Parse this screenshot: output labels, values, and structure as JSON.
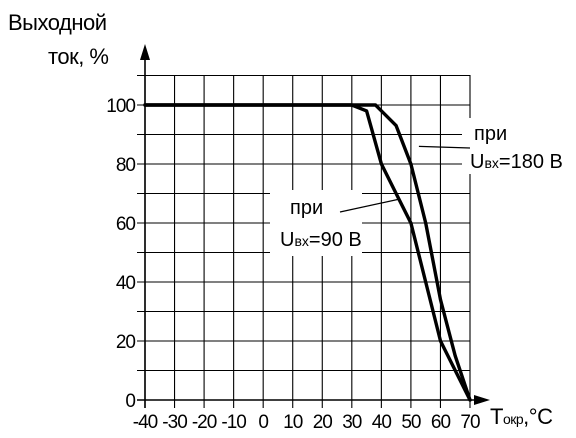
{
  "chart_data": {
    "type": "line",
    "ylabel_line1": "Выходной",
    "ylabel_line2": "ток, %",
    "xlabel_main": "T",
    "xlabel_sub": "окр",
    "xlabel_unit": ",°C",
    "x_ticks": [
      -40,
      -30,
      -20,
      -10,
      0,
      10,
      20,
      30,
      40,
      50,
      60,
      70
    ],
    "y_ticks": [
      0,
      20,
      40,
      60,
      80,
      100
    ],
    "xlim": [
      -40,
      70
    ],
    "ylim": [
      0,
      100
    ],
    "grid": true,
    "series": [
      {
        "x": [
          -40,
          30,
          38,
          45,
          50,
          55,
          60,
          65,
          70
        ],
        "y": [
          100,
          100,
          100,
          93,
          80,
          60,
          34,
          15,
          0
        ]
      },
      {
        "x": [
          -40,
          30,
          35,
          40,
          45,
          50,
          55,
          60,
          70
        ],
        "y": [
          100,
          100,
          98,
          80,
          70,
          60,
          40,
          20,
          0
        ]
      }
    ],
    "annotations": [
      {
        "line1": "при",
        "line2_main": "U",
        "line2_sub": "вх",
        "line2_tail": "=180 В"
      },
      {
        "line1": "при",
        "line2_main": "U",
        "line2_sub": "вх",
        "line2_tail": "=90 В"
      }
    ]
  }
}
